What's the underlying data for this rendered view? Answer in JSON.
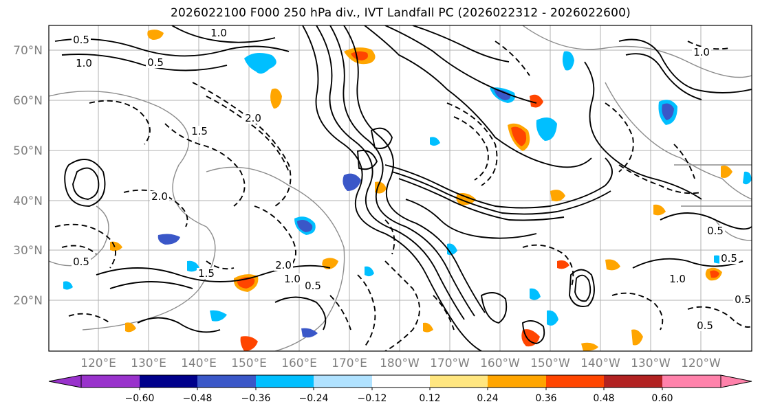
{
  "title": "2026022100 F000 250 hPa div., IVT Landfall PC (2026022312 - 2026022600)",
  "map": {
    "lat_labels": [
      "70°N",
      "60°N",
      "50°N",
      "40°N",
      "30°N",
      "20°N"
    ],
    "lon_labels": [
      "120°E",
      "130°E",
      "140°E",
      "150°E",
      "160°E",
      "170°E",
      "180°W",
      "170°W",
      "160°W",
      "150°W",
      "140°W",
      "130°W",
      "120°W"
    ],
    "contour_labels": [
      "0.5",
      "1.0",
      "0.5",
      "2.0",
      "1.5",
      "1.0",
      "2.0",
      "1.5",
      "1.0",
      "0.5",
      "2.0",
      "0.5",
      "1.0",
      "0.5",
      "0.5",
      "1.0",
      "0.5",
      "0.5"
    ]
  },
  "colorbar": {
    "ticks": [
      "−0.60",
      "−0.48",
      "−0.36",
      "−0.24",
      "−0.12",
      "0.12",
      "0.24",
      "0.36",
      "0.48",
      "0.60"
    ],
    "colors": [
      "#9932cc",
      "#00008b",
      "#3a57c8",
      "#00bfff",
      "#b0e2ff",
      "#ffffff",
      "#ffe680",
      "#ffa500",
      "#ff4500",
      "#b22222",
      "#ff82ab"
    ]
  }
}
